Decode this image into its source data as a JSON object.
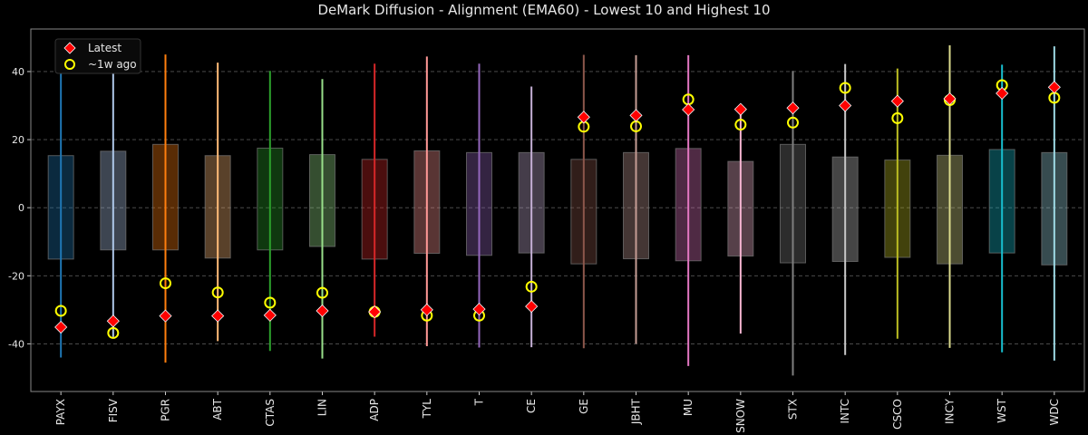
{
  "chart_data": {
    "type": "box-range",
    "title": "DeMark Diffusion - Alignment (EMA60) - Lowest 10 and Highest 10",
    "xlabel": "",
    "ylabel": "",
    "ylim": [
      -54,
      52.5
    ],
    "yticks": [
      -40,
      -20,
      0,
      20,
      40
    ],
    "grid": "horizontal dashed",
    "legend": {
      "placement": "top-left",
      "entries": [
        {
          "label": "Latest",
          "marker": "diamond",
          "color": "#ff0000"
        },
        {
          "label": "~1w ago",
          "marker": "circle",
          "color": "#ffff00"
        }
      ]
    },
    "categories": [
      "PAYX",
      "FISV",
      "PGR",
      "ABT",
      "CTAS",
      "LIN",
      "ADP",
      "TYL",
      "T",
      "CE",
      "GE",
      "JBHT",
      "MU",
      "SNOW",
      "STX",
      "INTC",
      "CSCO",
      "INCY",
      "WST",
      "WDC"
    ],
    "colors": [
      "#1f77b4",
      "#aec7e8",
      "#ff7f0e",
      "#ffbb78",
      "#2ca02c",
      "#98df8a",
      "#d62728",
      "#ff9896",
      "#9467bd",
      "#c5b0d5",
      "#8c564b",
      "#c49c94",
      "#e377c2",
      "#f7b6d2",
      "#7f7f7f",
      "#c7c7c7",
      "#bcbd22",
      "#dbdb8d",
      "#17becf",
      "#9edae5"
    ],
    "range_max": [
      45.0,
      40.6,
      45.0,
      42.6,
      40.2,
      37.8,
      42.3,
      44.4,
      42.3,
      35.6,
      44.9,
      44.8,
      44.8,
      29.5,
      40.2,
      42.2,
      40.9,
      47.7,
      42.0,
      47.4
    ],
    "range_min": [
      -44.0,
      -38.0,
      -45.5,
      -39.2,
      -42.1,
      -44.3,
      -37.9,
      -40.7,
      -41.1,
      -41.0,
      -41.3,
      -40.0,
      -46.5,
      -37.0,
      -49.3,
      -43.3,
      -38.5,
      -41.2,
      -42.5,
      -44.9
    ],
    "box_top": [
      15.3,
      16.6,
      18.6,
      15.3,
      17.5,
      15.6,
      14.2,
      16.7,
      16.2,
      16.2,
      14.2,
      16.2,
      17.4,
      13.6,
      18.6,
      14.9,
      14.0,
      15.4,
      17.1,
      16.2
    ],
    "box_bottom": [
      -15.1,
      -12.4,
      -12.4,
      -14.8,
      -12.4,
      -11.4,
      -15.1,
      -13.4,
      -14.0,
      -13.3,
      -16.5,
      -15.0,
      -15.6,
      -14.2,
      -16.2,
      -15.8,
      -14.6,
      -16.5,
      -13.3,
      -16.8
    ],
    "latest": [
      -35.1,
      -33.3,
      -31.8,
      -31.8,
      -31.6,
      -30.3,
      -30.6,
      -30.0,
      -29.8,
      -29.0,
      26.6,
      27.1,
      28.8,
      28.9,
      29.3,
      30.0,
      31.3,
      32.0,
      33.6,
      35.4
    ],
    "week_ago": [
      -30.3,
      -36.8,
      -22.2,
      -24.9,
      -27.9,
      -25.0,
      -30.6,
      -31.7,
      -31.7,
      -23.2,
      23.8,
      23.9,
      31.8,
      24.4,
      25.0,
      35.2,
      26.3,
      31.6,
      36.0,
      32.3
    ]
  }
}
